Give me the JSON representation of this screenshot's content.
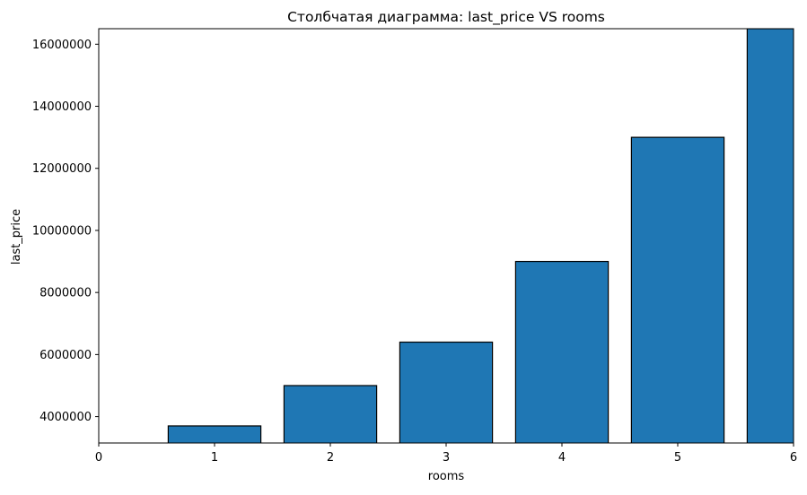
{
  "chart_data": {
    "type": "bar",
    "title": "Столбчатая диаграмма: last_price VS rooms",
    "xlabel": "rooms",
    "ylabel": "last_price",
    "categories": [
      0,
      1,
      2,
      3,
      4,
      5,
      6
    ],
    "values": [
      3100000,
      3700000,
      5000000,
      6400000,
      9000000,
      13000000,
      16500000
    ],
    "xlim": [
      0,
      6
    ],
    "ylim": [
      3150000,
      16500000
    ],
    "x_ticks": [
      "0",
      "1",
      "2",
      "3",
      "4",
      "5",
      "6"
    ],
    "y_ticks": [
      4000000,
      6000000,
      8000000,
      10000000,
      12000000,
      14000000,
      16000000
    ],
    "y_tick_labels": [
      "4000000",
      "6000000",
      "8000000",
      "10000000",
      "12000000",
      "14000000",
      "16000000"
    ],
    "grid": false,
    "legend": "none",
    "bar_color": "#1f77b4",
    "bar_edge_color": "#000000"
  }
}
